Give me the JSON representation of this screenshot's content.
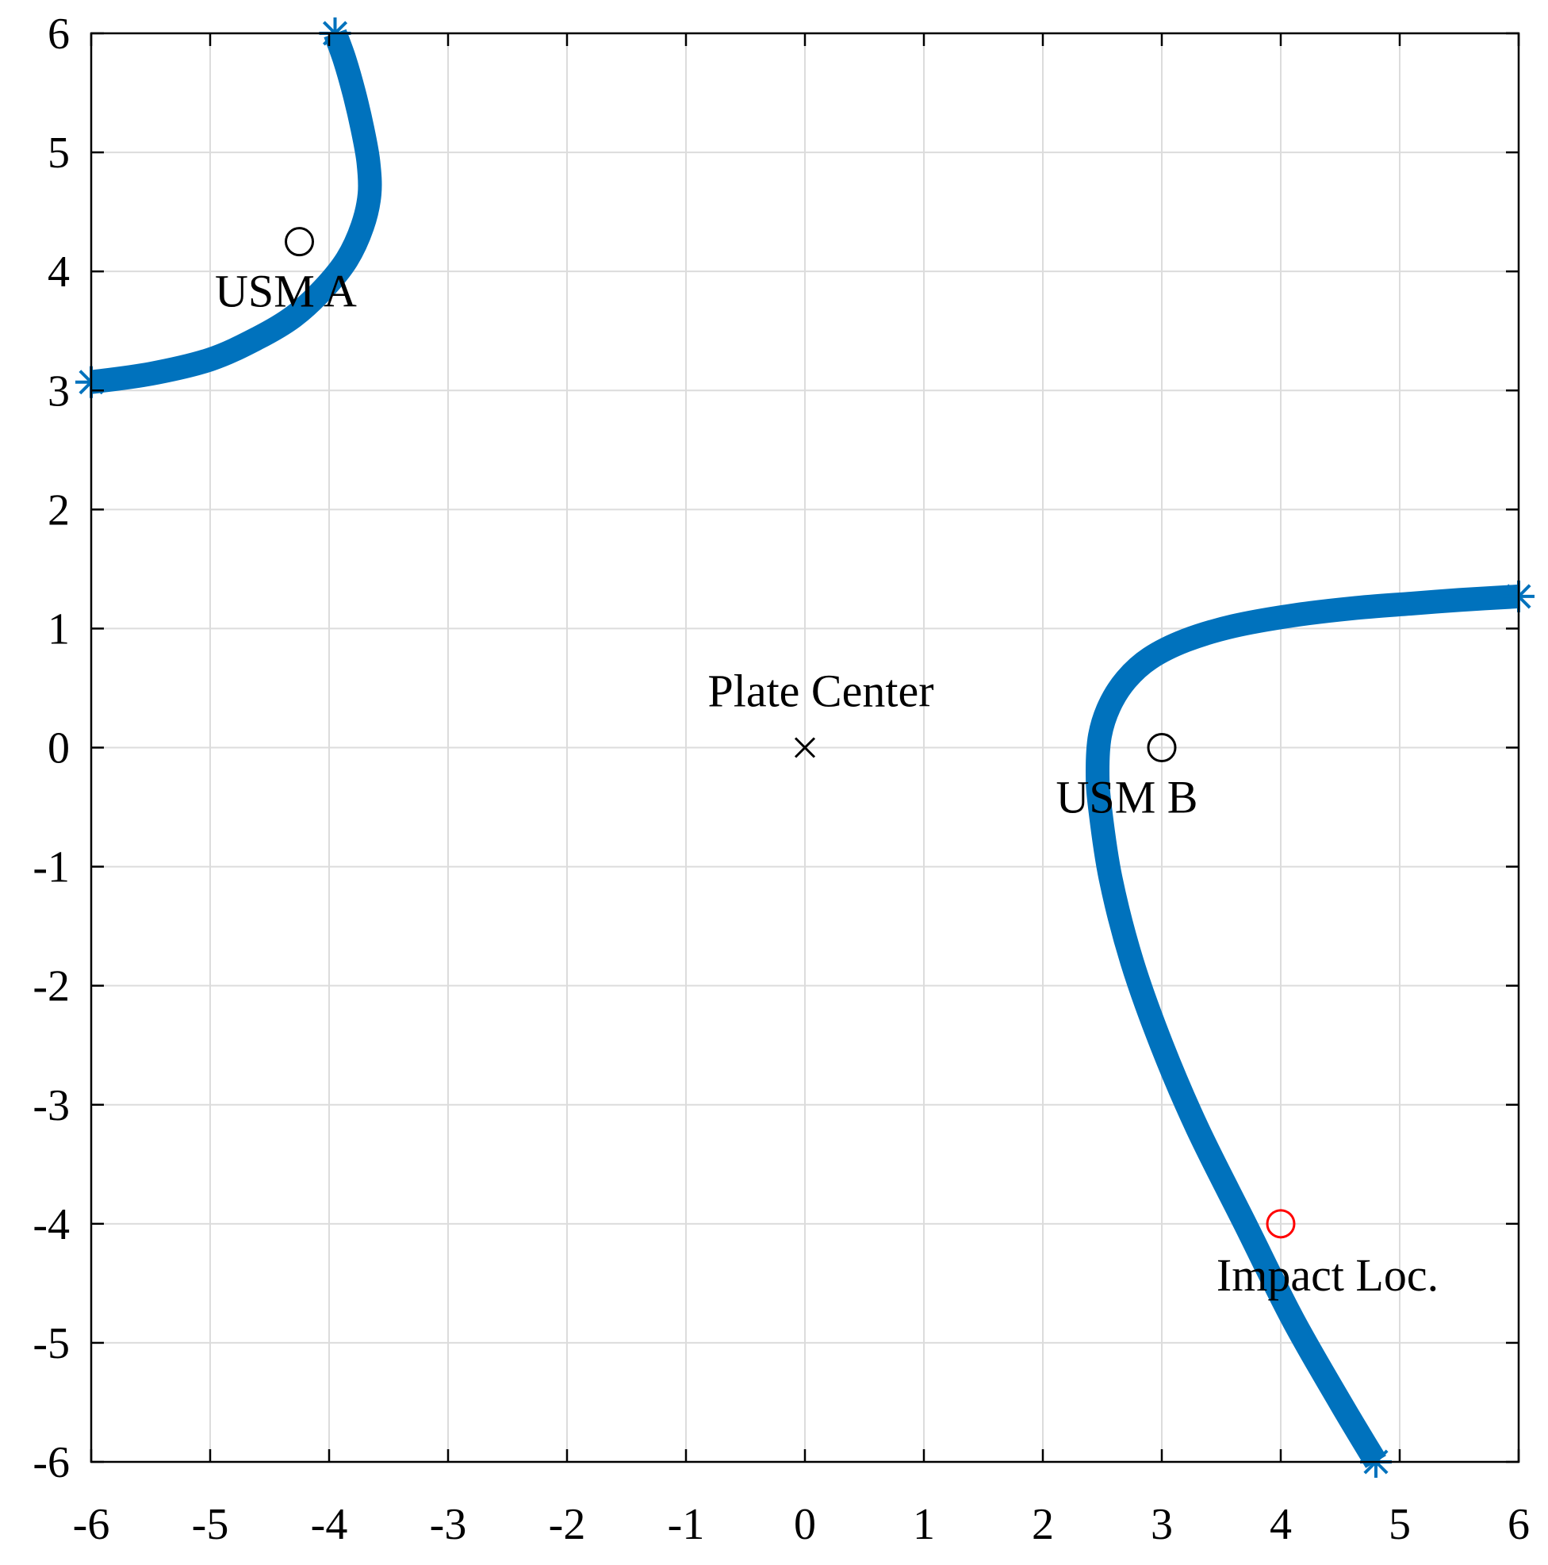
{
  "chart_data": {
    "type": "scatter",
    "title": "",
    "xlabel": "",
    "ylabel": "",
    "xlim": [
      -6,
      6
    ],
    "ylim": [
      -6,
      6
    ],
    "xticks": [
      -6,
      -5,
      -4,
      -3,
      -2,
      -1,
      0,
      1,
      2,
      3,
      4,
      5,
      6
    ],
    "yticks": [
      -6,
      -5,
      -4,
      -3,
      -2,
      -1,
      0,
      1,
      2,
      3,
      4,
      5,
      6
    ],
    "grid": true,
    "colors": {
      "curve": "#0072BD",
      "sensor": "#000000",
      "impact": "#FF0000",
      "grid": "#DCDCDC",
      "axis": "#000000"
    },
    "series": [
      {
        "marker": "*",
        "points": [
          [
            -6.0,
            3.07
          ],
          [
            -5.5,
            3.14
          ],
          [
            -5.0,
            3.26
          ],
          [
            -4.6,
            3.44
          ],
          [
            -4.3,
            3.62
          ],
          [
            -4.05,
            3.85
          ],
          [
            -3.85,
            4.1
          ],
          [
            -3.72,
            4.38
          ],
          [
            -3.66,
            4.65
          ],
          [
            -3.67,
            4.92
          ],
          [
            -3.72,
            5.2
          ],
          [
            -3.79,
            5.5
          ],
          [
            -3.87,
            5.78
          ],
          [
            -3.95,
            6.0
          ]
        ]
      },
      {
        "marker": "*",
        "points": [
          [
            4.8,
            -6.0
          ],
          [
            4.5,
            -5.5
          ],
          [
            4.1,
            -4.8
          ],
          [
            3.7,
            -4.0
          ],
          [
            3.3,
            -3.2
          ],
          [
            3.0,
            -2.5
          ],
          [
            2.75,
            -1.8
          ],
          [
            2.57,
            -1.1
          ],
          [
            2.48,
            -0.5
          ],
          [
            2.46,
            -0.2
          ],
          [
            2.48,
            0.1
          ],
          [
            2.56,
            0.35
          ],
          [
            2.7,
            0.57
          ],
          [
            2.9,
            0.75
          ],
          [
            3.2,
            0.9
          ],
          [
            3.6,
            1.02
          ],
          [
            4.1,
            1.11
          ],
          [
            4.6,
            1.17
          ],
          [
            5.1,
            1.21
          ],
          [
            5.5,
            1.24
          ],
          [
            6.0,
            1.27
          ]
        ]
      }
    ],
    "markers": [
      {
        "label": "USM A",
        "x": -4.25,
        "y": 4.25,
        "symbol": "circle",
        "color": "#000000"
      },
      {
        "label": "USM B",
        "x": 3.0,
        "y": 0.0,
        "symbol": "circle",
        "color": "#000000"
      },
      {
        "label": "Plate Center",
        "x": 0.0,
        "y": 0.0,
        "symbol": "x",
        "color": "#000000"
      },
      {
        "label": "Impact Loc.",
        "x": 4.0,
        "y": -4.0,
        "symbol": "circle",
        "color": "#FF0000"
      }
    ]
  }
}
